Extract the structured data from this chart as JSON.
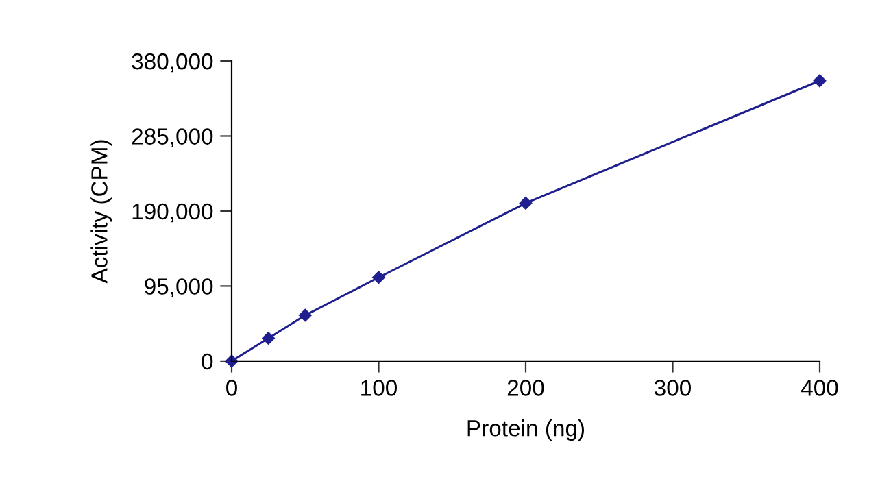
{
  "chart_data": {
    "type": "line",
    "xlabel": "Protein (ng)",
    "ylabel": "Activity (CPM)",
    "x": [
      0,
      25,
      50,
      100,
      200,
      400
    ],
    "series": [
      {
        "color": "#1f1f8f",
        "values": [
          0,
          29000,
          58000,
          106000,
          200000,
          355000
        ]
      }
    ],
    "xlim": [
      0,
      400
    ],
    "xticks": [
      0,
      100,
      200,
      300,
      400
    ],
    "ylim": [
      0,
      380000
    ],
    "yticks": [
      {
        "value": 0,
        "label": "0"
      },
      {
        "value": 95000,
        "label": "95,000"
      },
      {
        "value": 190000,
        "label": "190,000"
      },
      {
        "value": 285000,
        "label": "285,000"
      },
      {
        "value": 380000,
        "label": "380,000"
      }
    ],
    "grid": false,
    "legend": false,
    "marker": "diamond",
    "line_style": "solid"
  }
}
